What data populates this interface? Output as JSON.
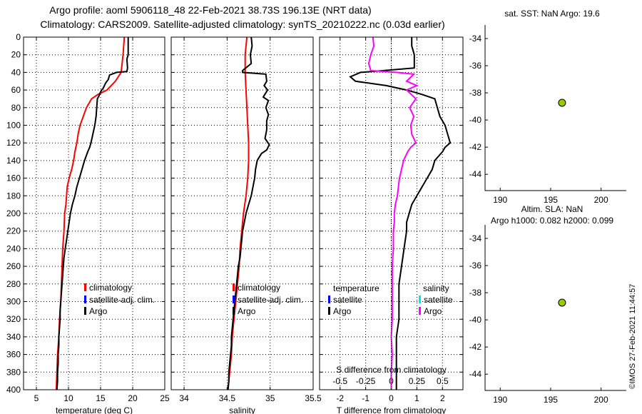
{
  "header": {
    "line1": "Argo profile: aoml 5906118_48 22-Feb-2021 38.73S 196.13E (NRT data)",
    "line2": "Climatology: CARS2009. Satellite-adjusted climatology: synTS_20210222.nc (0.03d earlier)"
  },
  "stamp": "©IMOS 27-Feb-2021 11:44:57",
  "colors": {
    "climatology": "#ff0000",
    "satellite": "#0000ff",
    "argo": "#000000",
    "sat_salinity": "#00e5ff",
    "argo_salinity_diff": "#ff00ff",
    "marker": "#99cc00"
  },
  "chart_data": [
    {
      "id": "temperature",
      "type": "line",
      "xlabel": "temperature (deg C)",
      "ylabel": "",
      "xlim": [
        3,
        25
      ],
      "ylim": [
        400,
        0
      ],
      "xticks": [
        "5",
        "10",
        "15",
        "20",
        "25"
      ],
      "yticks": [
        "0",
        "20",
        "40",
        "60",
        "80",
        "100",
        "120",
        "140",
        "160",
        "180",
        "200",
        "220",
        "240",
        "260",
        "280",
        "300",
        "320",
        "340",
        "360",
        "380",
        "400"
      ],
      "grid": true,
      "legend": [
        {
          "label": "climatology",
          "color": "#ff0000"
        },
        {
          "label": "satellite-adj. clim.",
          "color": "#0000ff"
        },
        {
          "label": "Argo",
          "color": "#000000"
        }
      ],
      "series": [
        {
          "name": "climatology",
          "color": "#ff0000",
          "points": [
            [
              18.7,
              0
            ],
            [
              18.5,
              20
            ],
            [
              18.2,
              40
            ],
            [
              17.3,
              50
            ],
            [
              16.0,
              60
            ],
            [
              14.6,
              65
            ],
            [
              13.6,
              70
            ],
            [
              12.8,
              80
            ],
            [
              12.3,
              90
            ],
            [
              11.8,
              100
            ],
            [
              11.5,
              110
            ],
            [
              11.3,
              120
            ],
            [
              11.0,
              130
            ],
            [
              10.8,
              140
            ],
            [
              10.5,
              150
            ],
            [
              10.1,
              160
            ],
            [
              9.8,
              170
            ],
            [
              9.7,
              180
            ],
            [
              9.6,
              190
            ],
            [
              9.4,
              200
            ],
            [
              9.3,
              220
            ],
            [
              9.1,
              240
            ],
            [
              9.0,
              260
            ],
            [
              8.9,
              280
            ],
            [
              8.8,
              300
            ],
            [
              8.6,
              320
            ],
            [
              8.5,
              340
            ],
            [
              8.3,
              360
            ],
            [
              8.2,
              380
            ],
            [
              8.1,
              400
            ]
          ]
        },
        {
          "name": "Argo",
          "color": "#000000",
          "points": [
            [
              19.3,
              0
            ],
            [
              19.3,
              20
            ],
            [
              19.1,
              25
            ],
            [
              19.2,
              35
            ],
            [
              19.1,
              39
            ],
            [
              17.5,
              40
            ],
            [
              16.4,
              43
            ],
            [
              16.2,
              48
            ],
            [
              15.8,
              52
            ],
            [
              15.4,
              58
            ],
            [
              15.0,
              62
            ],
            [
              14.8,
              66
            ],
            [
              14.5,
              70
            ],
            [
              14.4,
              80
            ],
            [
              14.3,
              90
            ],
            [
              14.1,
              100
            ],
            [
              13.8,
              110
            ],
            [
              13.5,
              120
            ],
            [
              13.3,
              125
            ],
            [
              13.0,
              130
            ],
            [
              12.5,
              140
            ],
            [
              12.1,
              150
            ],
            [
              11.7,
              160
            ],
            [
              11.3,
              170
            ],
            [
              11.0,
              180
            ],
            [
              10.6,
              190
            ],
            [
              10.3,
              200
            ],
            [
              10.1,
              210
            ],
            [
              9.9,
              220
            ],
            [
              9.7,
              230
            ],
            [
              9.5,
              240
            ],
            [
              9.3,
              250
            ],
            [
              9.2,
              260
            ],
            [
              9.1,
              270
            ],
            [
              9.0,
              280
            ],
            [
              8.9,
              290
            ],
            [
              8.8,
              300
            ],
            [
              8.7,
              310
            ],
            [
              8.7,
              320
            ],
            [
              8.6,
              330
            ],
            [
              8.5,
              340
            ],
            [
              8.5,
              350
            ],
            [
              8.4,
              360
            ],
            [
              8.4,
              370
            ],
            [
              8.3,
              380
            ],
            [
              8.3,
              390
            ],
            [
              8.2,
              400
            ]
          ]
        }
      ]
    },
    {
      "id": "salinity",
      "type": "line",
      "xlabel": "salinity",
      "xlim": [
        33.85,
        35.5
      ],
      "ylim": [
        400,
        0
      ],
      "xticks": [
        "34",
        "34.5",
        "35",
        "35.5"
      ],
      "grid": true,
      "legend": [
        {
          "label": "climatology",
          "color": "#ff0000"
        },
        {
          "label": "satellite-adj. clim.",
          "color": "#0000ff"
        },
        {
          "label": "Argo",
          "color": "#000000"
        }
      ],
      "series": [
        {
          "name": "climatology",
          "color": "#ff0000",
          "points": [
            [
              34.73,
              0
            ],
            [
              34.72,
              10
            ],
            [
              34.71,
              20
            ],
            [
              34.71,
              40
            ],
            [
              34.72,
              60
            ],
            [
              34.73,
              80
            ],
            [
              34.74,
              100
            ],
            [
              34.75,
              120
            ],
            [
              34.75,
              140
            ],
            [
              34.74,
              160
            ],
            [
              34.72,
              180
            ],
            [
              34.69,
              200
            ],
            [
              34.67,
              220
            ],
            [
              34.65,
              240
            ],
            [
              34.64,
              260
            ],
            [
              34.62,
              280
            ],
            [
              34.6,
              300
            ],
            [
              34.58,
              320
            ],
            [
              34.56,
              340
            ],
            [
              34.55,
              360
            ],
            [
              34.53,
              380
            ],
            [
              34.51,
              400
            ]
          ]
        },
        {
          "name": "Argo",
          "color": "#000000",
          "points": [
            [
              34.78,
              0
            ],
            [
              34.79,
              10
            ],
            [
              34.77,
              20
            ],
            [
              34.78,
              30
            ],
            [
              34.68,
              38
            ],
            [
              34.68,
              40
            ],
            [
              34.95,
              42
            ],
            [
              34.96,
              50
            ],
            [
              34.93,
              55
            ],
            [
              34.97,
              60
            ],
            [
              34.92,
              68
            ],
            [
              34.98,
              72
            ],
            [
              34.95,
              80
            ],
            [
              34.98,
              88
            ],
            [
              34.96,
              95
            ],
            [
              34.96,
              105
            ],
            [
              34.94,
              115
            ],
            [
              34.99,
              122
            ],
            [
              34.96,
              128
            ],
            [
              34.9,
              132
            ],
            [
              34.85,
              140
            ],
            [
              34.83,
              150
            ],
            [
              34.82,
              160
            ],
            [
              34.8,
              170
            ],
            [
              34.78,
              180
            ],
            [
              34.75,
              190
            ],
            [
              34.72,
              200
            ],
            [
              34.7,
              210
            ],
            [
              34.68,
              220
            ],
            [
              34.67,
              230
            ],
            [
              34.66,
              240
            ],
            [
              34.65,
              250
            ],
            [
              34.63,
              260
            ],
            [
              34.62,
              270
            ],
            [
              34.61,
              280
            ],
            [
              34.6,
              290
            ],
            [
              34.59,
              300
            ],
            [
              34.58,
              310
            ],
            [
              34.57,
              320
            ],
            [
              34.56,
              330
            ],
            [
              34.55,
              340
            ],
            [
              34.55,
              350
            ],
            [
              34.54,
              360
            ],
            [
              34.53,
              370
            ],
            [
              34.52,
              380
            ],
            [
              34.52,
              390
            ],
            [
              34.51,
              400
            ]
          ]
        }
      ]
    },
    {
      "id": "difference",
      "type": "line",
      "xlabel": "T difference from climatology",
      "title_inner": "S difference from climatology",
      "xlim": [
        -2.8,
        2.8
      ],
      "ylim": [
        400,
        0
      ],
      "xticks": [
        "-2",
        "-1",
        "0",
        "1",
        "2"
      ],
      "sticks": [
        "-0.5",
        "-0.25",
        "0",
        "0.25",
        "0.5"
      ],
      "grid": true,
      "legend_left_title": "temperature",
      "legend_right_title": "salinity",
      "legend_left": [
        {
          "label": "satellite",
          "color": "#0000ff"
        },
        {
          "label": "Argo",
          "color": "#000000"
        }
      ],
      "legend_right": [
        {
          "label": "satellite",
          "color": "#00e5ff"
        },
        {
          "label": "Argo",
          "color": "#ff00ff"
        }
      ],
      "series": [
        {
          "name": "T Argo - clim",
          "color": "#000000",
          "points": [
            [
              0.8,
              0
            ],
            [
              0.8,
              10
            ],
            [
              0.9,
              20
            ],
            [
              0.9,
              35
            ],
            [
              -0.3,
              38
            ],
            [
              -1.2,
              40
            ],
            [
              -1.6,
              45
            ],
            [
              -1.4,
              50
            ],
            [
              -0.2,
              55
            ],
            [
              0.6,
              60
            ],
            [
              1.2,
              65
            ],
            [
              1.7,
              70
            ],
            [
              1.8,
              80
            ],
            [
              1.9,
              90
            ],
            [
              2.1,
              100
            ],
            [
              2.2,
              110
            ],
            [
              2.3,
              120
            ],
            [
              2.1,
              125
            ],
            [
              2.0,
              130
            ],
            [
              1.7,
              140
            ],
            [
              1.6,
              150
            ],
            [
              1.4,
              160
            ],
            [
              1.2,
              170
            ],
            [
              1.0,
              180
            ],
            [
              0.8,
              190
            ],
            [
              0.7,
              200
            ],
            [
              0.6,
              210
            ],
            [
              0.6,
              220
            ],
            [
              0.5,
              240
            ],
            [
              0.4,
              260
            ],
            [
              0.3,
              280
            ],
            [
              0.3,
              300
            ],
            [
              0.3,
              320
            ],
            [
              0.2,
              340
            ],
            [
              0.2,
              360
            ],
            [
              0.2,
              380
            ],
            [
              0.2,
              400
            ]
          ]
        },
        {
          "name": "S Argo - clim",
          "color": "#ff00ff",
          "points": [
            [
              -0.18,
              0
            ],
            [
              -0.17,
              10
            ],
            [
              -0.2,
              20
            ],
            [
              -0.22,
              30
            ],
            [
              -0.2,
              38
            ],
            [
              0.05,
              40
            ],
            [
              0.22,
              42
            ],
            [
              0.15,
              50
            ],
            [
              0.25,
              55
            ],
            [
              0.15,
              60
            ],
            [
              0.24,
              70
            ],
            [
              0.18,
              80
            ],
            [
              0.22,
              90
            ],
            [
              0.19,
              100
            ],
            [
              0.2,
              110
            ],
            [
              0.24,
              120
            ],
            [
              0.19,
              125
            ],
            [
              0.16,
              130
            ],
            [
              0.12,
              140
            ],
            [
              0.1,
              150
            ],
            [
              0.08,
              160
            ],
            [
              0.07,
              170
            ],
            [
              0.06,
              180
            ],
            [
              0.04,
              190
            ],
            [
              0.03,
              200
            ],
            [
              0.03,
              210
            ],
            [
              0.02,
              220
            ],
            [
              0.02,
              240
            ],
            [
              0.01,
              260
            ],
            [
              0.01,
              280
            ],
            [
              0.01,
              300
            ],
            [
              0.01,
              320
            ],
            [
              0.0,
              340
            ],
            [
              0.01,
              360
            ],
            [
              0.0,
              380
            ],
            [
              0.0,
              400
            ]
          ]
        }
      ]
    },
    {
      "id": "sat_sst",
      "type": "scatter",
      "title": "sat. SST: NaN Argo: 19.6",
      "xlim": [
        188.5,
        202.5
      ],
      "ylim": [
        -45.2,
        -33
      ],
      "xticks": [
        "190",
        "195",
        "200"
      ],
      "yticks": [
        "-34",
        "-36",
        "-38",
        "-40",
        "-42",
        "-44"
      ],
      "points": [
        [
          196.13,
          -38.73
        ]
      ]
    },
    {
      "id": "altim_sla",
      "type": "scatter",
      "title": "Altim. SLA: NaN",
      "subtitle": "Argo h1000: 0.082 h2000: 0.099",
      "xlim": [
        188.5,
        202.5
      ],
      "ylim": [
        -45.2,
        -33
      ],
      "xticks": [
        "190",
        "195",
        "200"
      ],
      "yticks": [
        "-34",
        "-36",
        "-38",
        "-40",
        "-42",
        "-44"
      ],
      "points": [
        [
          196.13,
          -38.73
        ]
      ]
    }
  ]
}
